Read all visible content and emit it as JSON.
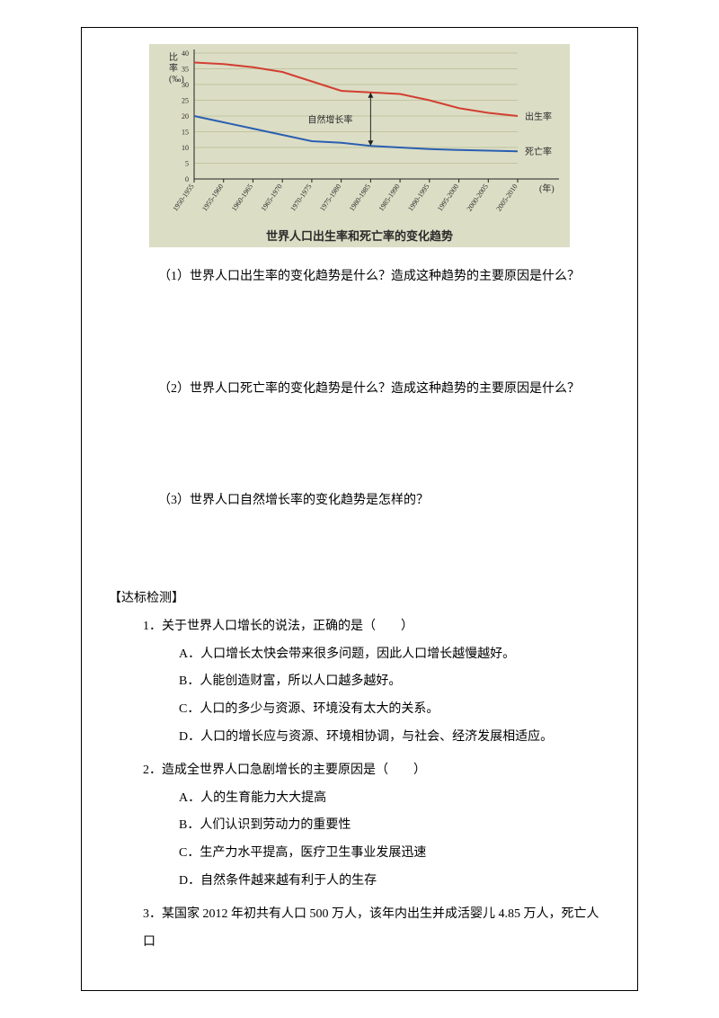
{
  "chart": {
    "type": "line",
    "ylabel_top": "比\n率\n(‰)",
    "xlabel_right": "(年)",
    "arrow_label": "自然增长率",
    "birth_label": "出生率",
    "death_label": "死亡率",
    "caption": "世界人口出生率和死亡率的变化趋势",
    "x_categories": [
      "1950-1955",
      "1955-1960",
      "1960-1965",
      "1965-1970",
      "1970-1975",
      "1975-1980",
      "1980-1985",
      "1985-1990",
      "1990-1995",
      "1995-2000",
      "2000-2005",
      "2005-2010"
    ],
    "y_ticks": [
      0,
      5,
      10,
      15,
      20,
      25,
      30,
      35,
      40
    ],
    "ylim": [
      0,
      40
    ],
    "birth_values": [
      37,
      36.5,
      35.5,
      34,
      31,
      28,
      27.5,
      27,
      25,
      22.5,
      21,
      20
    ],
    "death_values": [
      20,
      18,
      16,
      14,
      12,
      11.5,
      10.5,
      10,
      9.5,
      9.2,
      9,
      8.8
    ],
    "birth_color": "#d23f31",
    "death_color": "#2a5fb0",
    "grid_color": "#c1c5a0",
    "box_bg": "#dcddc5",
    "axis_color": "#222222",
    "label_color": "#2a2a2a",
    "tick_fontsize": 8,
    "label_fontsize": 10,
    "line_width": 2
  },
  "questions": {
    "q1": "（1）世界人口出生率的变化趋势是什么？造成这种趋势的主要原因是什么？",
    "q2": "（2）世界人口死亡率的变化趋势是什么？造成这种趋势的主要原因是什么？",
    "q3": "（3）世界人口自然增长率的变化趋势是怎样的？"
  },
  "test": {
    "heading": "【达标检测】",
    "items": [
      {
        "stem": "1．关于世界人口增长的说法，正确的是（　　）",
        "opts": [
          "A．人口增长太快会带来很多问题，因此人口增长越慢越好。",
          "B．人能创造财富，所以人口越多越好。",
          "C．人口的多少与资源、环境没有太大的关系。",
          "D．人口的增长应与资源、环境相协调，与社会、经济发展相适应。"
        ]
      },
      {
        "stem": "2．造成全世界人口急剧增长的主要原因是（　　）",
        "opts": [
          "A．人的生育能力大大提高",
          "B．人们认识到劳动力的重要性",
          "C．生产力水平提高，医疗卫生事业发展迅速",
          "D．自然条件越来越有利于人的生存"
        ]
      },
      {
        "stem": "3．某国家 2012 年初共有人口 500 万人，该年内出生并成活婴儿 4.85 万人，死亡人口",
        "opts": []
      }
    ]
  }
}
